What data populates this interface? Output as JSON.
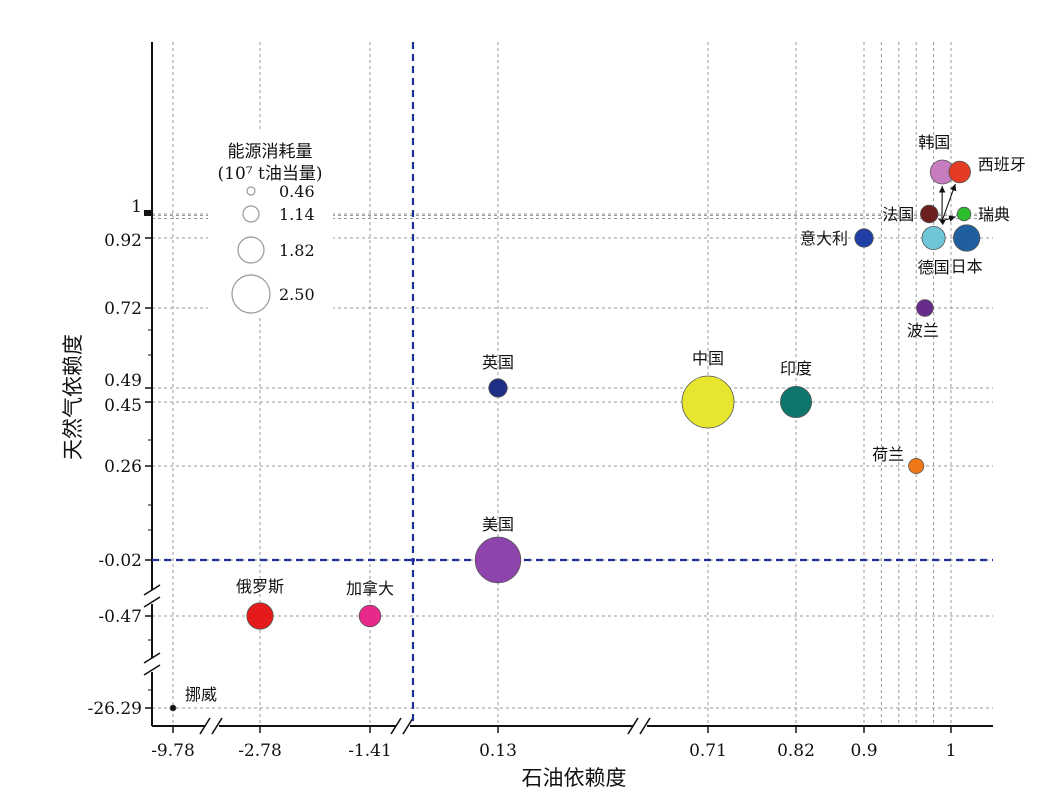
{
  "chart_data": {
    "type": "bubble-scatter",
    "xlabel": "石油依赖度",
    "ylabel": "天然气依赖度",
    "x_ticks": [
      "-9.78",
      "-2.78",
      "-1.41",
      "0.13",
      "0.71",
      "0.82",
      "0.9",
      "1"
    ],
    "y_ticks": [
      "1",
      "0.92",
      "0.72",
      "0.49",
      "0.45",
      "0.26",
      "-0.02",
      "-0.47",
      "-26.29"
    ],
    "threshold_lines": {
      "x_value_label": "between -1.41 and 0.13 (axis break)",
      "y_value": -0.02
    },
    "legend": {
      "title_line1": "能源消耗量",
      "title_line2": "(10⁷ t油当量)",
      "sizes": [
        "0.46",
        "1.14",
        "1.82",
        "2.50"
      ]
    },
    "points": [
      {
        "name": "挪威",
        "x": -9.78,
        "y": -26.29,
        "size": 0.05,
        "color": "#111111"
      },
      {
        "name": "俄罗斯",
        "x": -2.78,
        "y": -0.47,
        "size": 0.9,
        "color": "#e41a1c"
      },
      {
        "name": "加拿大",
        "x": -1.41,
        "y": -0.47,
        "size": 0.6,
        "color": "#e7298a"
      },
      {
        "name": "美国",
        "x": 0.13,
        "y": -0.02,
        "size": 2.1,
        "color": "#8e44ad"
      },
      {
        "name": "英国",
        "x": 0.13,
        "y": 0.49,
        "size": 0.4,
        "color": "#1f2f86"
      },
      {
        "name": "中国",
        "x": 0.71,
        "y": 0.45,
        "size": 2.5,
        "color": "#e6e62e"
      },
      {
        "name": "印度",
        "x": 0.82,
        "y": 0.45,
        "size": 1.2,
        "color": "#0f766e"
      },
      {
        "name": "意大利",
        "x": 0.9,
        "y": 0.92,
        "size": 0.4,
        "color": "#1f3fa6"
      },
      {
        "name": "荷兰",
        "x": 0.96,
        "y": 0.26,
        "size": 0.2,
        "color": "#f07818"
      },
      {
        "name": "波兰",
        "x": 0.97,
        "y": 0.72,
        "size": 0.3,
        "color": "#6a2c8c"
      },
      {
        "name": "德国",
        "x": 0.98,
        "y": 0.92,
        "size": 0.7,
        "color": "#6ec6d8"
      },
      {
        "name": "法国",
        "x": 0.975,
        "y": 1.0,
        "size": 0.35,
        "color": "#6b1f1f"
      },
      {
        "name": "韩国",
        "x": 0.99,
        "y": 1.05,
        "size": 0.75,
        "color": "#c77cc0"
      },
      {
        "name": "西班牙",
        "x": 1.01,
        "y": 1.05,
        "size": 0.6,
        "color": "#e53b24"
      },
      {
        "name": "瑞典",
        "x": 1.015,
        "y": 1.0,
        "size": 0.1,
        "color": "#2ebd2e"
      },
      {
        "name": "日本",
        "x": 1.018,
        "y": 0.92,
        "size": 0.9,
        "color": "#1f5fa0"
      }
    ]
  }
}
